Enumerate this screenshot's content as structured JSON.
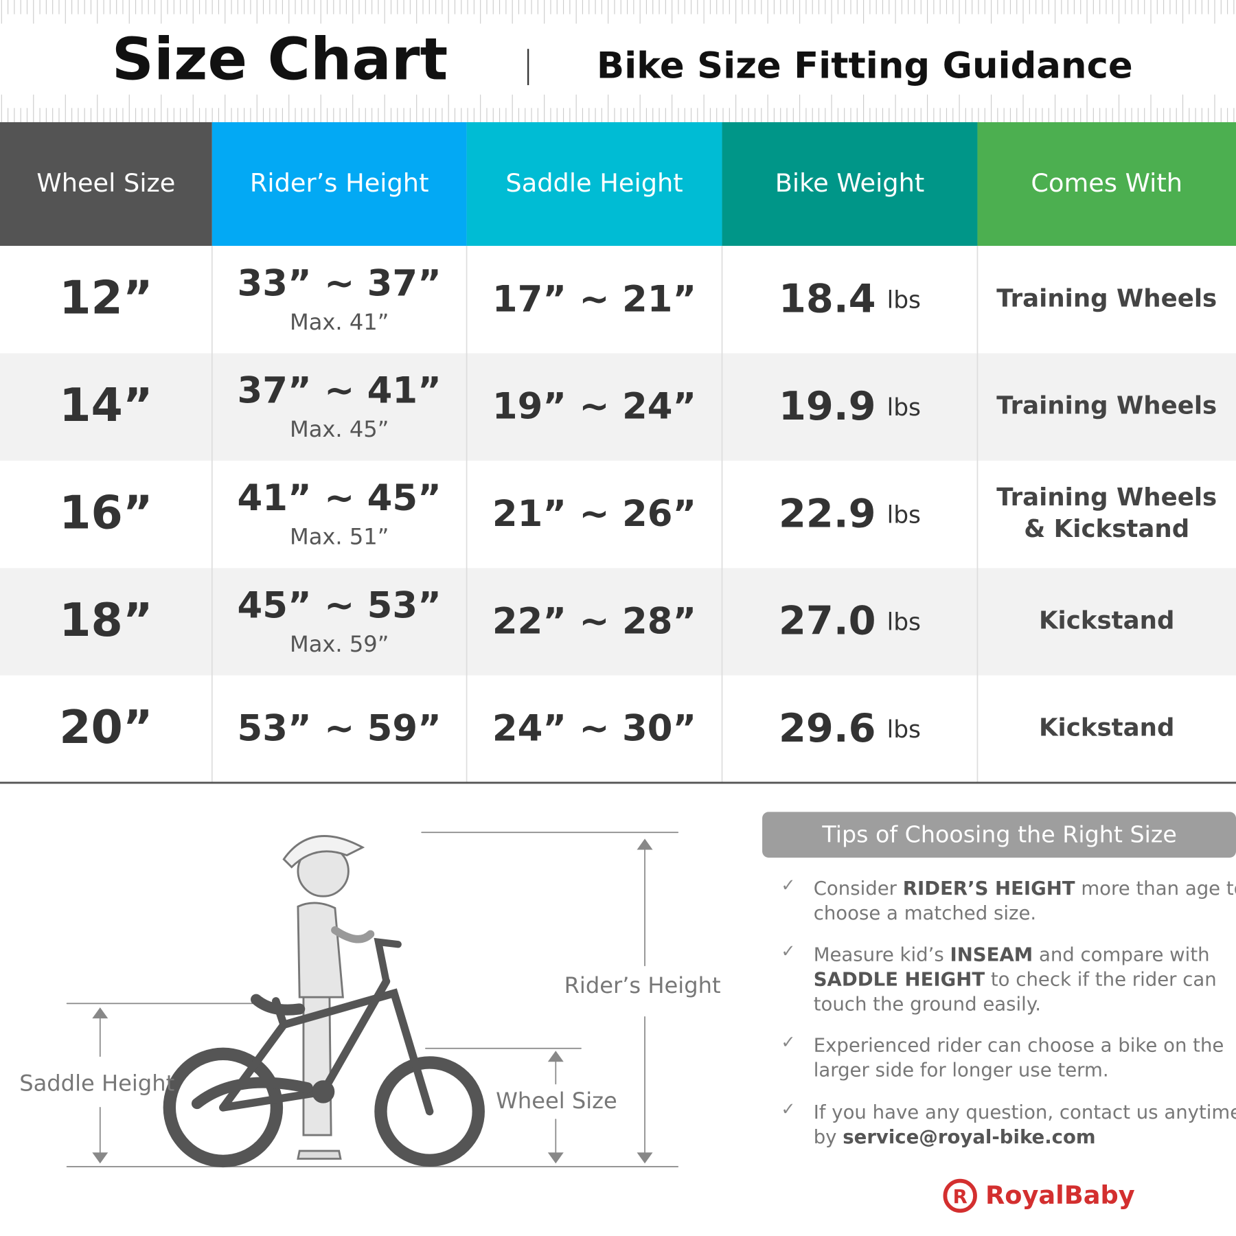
{
  "header": {
    "title": "Size Chart",
    "subtitle": "Bike Size Fitting Guidance"
  },
  "table": {
    "columns": [
      "Wheel Size",
      "Rider’s Height",
      "Saddle Height",
      "Bike Weight",
      "Comes With"
    ],
    "rows": [
      {
        "wheel_size": "12”",
        "riders_height": "33” ~ 37”",
        "riders_max": "Max. 41”",
        "saddle_height": "17” ~ 21”",
        "weight": "18.4",
        "weight_unit": "lbs",
        "comes_with": [
          "Training Wheels"
        ]
      },
      {
        "wheel_size": "14”",
        "riders_height": "37” ~ 41”",
        "riders_max": "Max. 45”",
        "saddle_height": "19” ~ 24”",
        "weight": "19.9",
        "weight_unit": "lbs",
        "comes_with": [
          "Training Wheels"
        ]
      },
      {
        "wheel_size": "16”",
        "riders_height": "41” ~ 45”",
        "riders_max": "Max. 51”",
        "saddle_height": "21” ~ 26”",
        "weight": "22.9",
        "weight_unit": "lbs",
        "comes_with": [
          "Training Wheels",
          "& Kickstand"
        ]
      },
      {
        "wheel_size": "18”",
        "riders_height": "45” ~ 53”",
        "riders_max": "Max. 59”",
        "saddle_height": "22” ~ 28”",
        "weight": "27.0",
        "weight_unit": "lbs",
        "comes_with": [
          "Kickstand"
        ]
      },
      {
        "wheel_size": "20”",
        "riders_height": "53” ~ 59”",
        "saddle_height": "24” ~ 30”",
        "weight": "29.6",
        "weight_unit": "lbs",
        "comes_with": [
          "Kickstand"
        ]
      }
    ]
  },
  "illustration": {
    "riders_height": "Rider’s Height",
    "saddle_height": "Saddle Height",
    "wheel_size": "Wheel Size"
  },
  "tips": {
    "title": "Tips of Choosing the Right Size",
    "items": [
      [
        [
          {
            "text": "Consider "
          },
          {
            "text": "RIDER’S HEIGHT",
            "bold": true
          },
          {
            "text": " more than age to"
          }
        ],
        [
          {
            "text": "choose a matched size."
          }
        ]
      ],
      [
        [
          {
            "text": "Measure kid’s "
          },
          {
            "text": "INSEAM",
            "bold": true
          },
          {
            "text": " and compare with"
          }
        ],
        [
          {
            "text": "SADDLE HEIGHT",
            "bold": true
          },
          {
            "text": " to check if the rider can"
          }
        ],
        [
          {
            "text": "touch the ground easily."
          }
        ]
      ],
      [
        [
          {
            "text": "Experienced rider can choose a bike on the"
          }
        ],
        [
          {
            "text": "larger side for longer use term."
          }
        ]
      ],
      [
        [
          {
            "text": "If you have any question, contact us anytime"
          }
        ],
        [
          {
            "text": "by "
          },
          {
            "text": "service@royal-bike.com",
            "bold": true
          }
        ]
      ]
    ]
  },
  "logo": "RoyalBaby"
}
